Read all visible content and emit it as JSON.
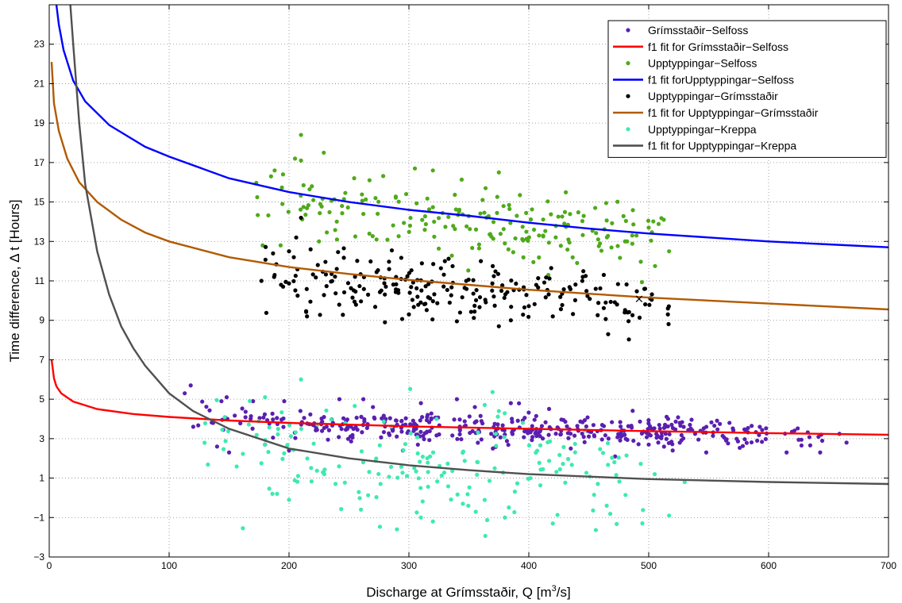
{
  "chart_data": {
    "type": "scatter",
    "xlabel": "Discharge at Grímsstaðir, Q [m",
    "xlabel_sup": "3",
    "xlabel_end": "/s]",
    "ylabel": "Time difference, Δ t [Hours]",
    "xlim": [
      0,
      700
    ],
    "ylim": [
      -3,
      25
    ],
    "xticks": [
      "0",
      "100",
      "200",
      "300",
      "400",
      "500",
      "600",
      "700"
    ],
    "yticks": [
      "−3",
      "−1",
      "1",
      "3",
      "5",
      "7",
      "9",
      "11",
      "13",
      "15",
      "17",
      "19",
      "21",
      "23"
    ],
    "grid": "dotted",
    "legend_position": "top-right",
    "series": [
      {
        "name": "Grímsstaðir−Selfoss",
        "kind": "scatter",
        "color": "#5a1fb0",
        "center": [
          [
            110,
            4.3
          ],
          [
            150,
            4.05
          ],
          [
            200,
            3.85
          ],
          [
            250,
            3.7
          ],
          [
            300,
            3.6
          ],
          [
            350,
            3.5
          ],
          [
            400,
            3.45
          ],
          [
            450,
            3.4
          ],
          [
            500,
            3.35
          ],
          [
            550,
            3.3
          ],
          [
            600,
            3.25
          ],
          [
            665,
            3.2
          ]
        ],
        "spread": 0.35,
        "x_range": [
          108,
          665
        ],
        "count": 420,
        "extra_points": [
          [
            118,
            5.7
          ],
          [
            113,
            5.3
          ],
          [
            148,
            5.1
          ],
          [
            242,
            5.0
          ],
          [
            262,
            5.0
          ],
          [
            170,
            4.9
          ],
          [
            196,
            4.9
          ],
          [
            340,
            5.0
          ],
          [
            355,
            4.6
          ],
          [
            385,
            4.8
          ],
          [
            140,
            2.6
          ],
          [
            150,
            2.3
          ],
          [
            200,
            2.4
          ],
          [
            295,
            2.4
          ],
          [
            370,
            2.5
          ],
          [
            435,
            2.5
          ],
          [
            472,
            2.1
          ],
          [
            520,
            2.4
          ],
          [
            548,
            2.3
          ],
          [
            615,
            2.3
          ],
          [
            643,
            2.3
          ],
          [
            665,
            2.8
          ],
          [
            310,
            4.8
          ],
          [
            270,
            4.6
          ],
          [
            180,
            2.7
          ],
          [
            500,
            2.7
          ]
        ]
      },
      {
        "name": "f1 fit for Grímsstaðir−Selfoss",
        "kind": "line",
        "color": "#ff0000",
        "curve": [
          [
            2,
            7.0
          ],
          [
            4,
            6.05
          ],
          [
            6,
            5.65
          ],
          [
            10,
            5.3
          ],
          [
            20,
            4.88
          ],
          [
            40,
            4.5
          ],
          [
            70,
            4.25
          ],
          [
            100,
            4.1
          ],
          [
            150,
            3.92
          ],
          [
            200,
            3.8
          ],
          [
            300,
            3.62
          ],
          [
            400,
            3.5
          ],
          [
            500,
            3.38
          ],
          [
            600,
            3.28
          ],
          [
            700,
            3.2
          ]
        ]
      },
      {
        "name": "Upptyppingar−Selfoss",
        "kind": "scatter",
        "color": "#4faa1a",
        "center": [
          [
            168,
            15.2
          ],
          [
            250,
            14.5
          ],
          [
            350,
            14.0
          ],
          [
            450,
            13.8
          ],
          [
            515,
            13.5
          ]
        ],
        "spread": 0.9,
        "x_range": [
          165,
          518
        ],
        "count": 190,
        "extra_points": [
          [
            210,
            18.4
          ],
          [
            205,
            17.2
          ],
          [
            210,
            17.1
          ],
          [
            229,
            17.5
          ],
          [
            188,
            16.6
          ],
          [
            195,
            16.4
          ],
          [
            185,
            16.3
          ],
          [
            305,
            16.7
          ],
          [
            320,
            16.6
          ],
          [
            375,
            16.5
          ],
          [
            193,
            12.8
          ],
          [
            225,
            13.0
          ],
          [
            240,
            13.1
          ],
          [
            273,
            13.1
          ],
          [
            380,
            12.9
          ],
          [
            383,
            12.6
          ],
          [
            433,
            13.1
          ],
          [
            482,
            13.0
          ],
          [
            517,
            12.5
          ],
          [
            500,
            13.7
          ],
          [
            178,
            12.8
          ]
        ]
      },
      {
        "name": "f1 fit forUpptyppingar−Selfoss",
        "kind": "line",
        "color": "#0000ff",
        "curve": [
          [
            3,
            26.5
          ],
          [
            5,
            25.5
          ],
          [
            8,
            24.0
          ],
          [
            12,
            22.7
          ],
          [
            20,
            21.15
          ],
          [
            30,
            20.1
          ],
          [
            50,
            18.9
          ],
          [
            80,
            17.8
          ],
          [
            100,
            17.3
          ],
          [
            150,
            16.2
          ],
          [
            200,
            15.5
          ],
          [
            250,
            15.0
          ],
          [
            300,
            14.6
          ],
          [
            350,
            14.3
          ],
          [
            400,
            13.95
          ],
          [
            450,
            13.65
          ],
          [
            500,
            13.4
          ],
          [
            550,
            13.2
          ],
          [
            600,
            13.0
          ],
          [
            650,
            12.85
          ],
          [
            700,
            12.7
          ]
        ]
      },
      {
        "name": "Upptyppingar−Grímsstaðir",
        "kind": "scatter",
        "color": "#000000",
        "center": [
          [
            168,
            11.3
          ],
          [
            250,
            10.8
          ],
          [
            350,
            10.4
          ],
          [
            450,
            10.2
          ],
          [
            515,
            9.7
          ]
        ],
        "spread": 0.8,
        "x_range": [
          165,
          518
        ],
        "count": 220,
        "extra_points": [
          [
            210,
            14.2
          ],
          [
            206,
            13.2
          ],
          [
            218,
            12.6
          ],
          [
            204,
            12.2
          ],
          [
            177,
            11.0
          ],
          [
            188,
            11.3
          ],
          [
            200,
            12.5
          ],
          [
            280,
            8.9
          ],
          [
            300,
            9.3
          ],
          [
            340,
            8.95
          ],
          [
            375,
            8.7
          ],
          [
            385,
            9.0
          ],
          [
            420,
            9.2
          ],
          [
            480,
            9.4
          ],
          [
            516,
            9.3
          ],
          [
            497,
            10.6
          ],
          [
            445,
            11.2
          ],
          [
            360,
            12.0
          ],
          [
            330,
            12.0
          ],
          [
            215,
            9.2
          ]
        ]
      },
      {
        "name": "f1 fit for Upptyppingar−Grímsstaðir",
        "kind": "line",
        "color": "#b25a00",
        "curve": [
          [
            2,
            22.1
          ],
          [
            4,
            20.0
          ],
          [
            8,
            18.6
          ],
          [
            15,
            17.2
          ],
          [
            25,
            16.0
          ],
          [
            40,
            15.0
          ],
          [
            60,
            14.1
          ],
          [
            80,
            13.45
          ],
          [
            100,
            13.0
          ],
          [
            150,
            12.2
          ],
          [
            200,
            11.7
          ],
          [
            250,
            11.35
          ],
          [
            300,
            11.05
          ],
          [
            350,
            10.8
          ],
          [
            400,
            10.55
          ],
          [
            450,
            10.35
          ],
          [
            500,
            10.15
          ],
          [
            600,
            9.85
          ],
          [
            700,
            9.55
          ]
        ]
      },
      {
        "name": "Upptyppingar−Kreppa",
        "kind": "scatter",
        "color": "#3deab0",
        "center": [
          [
            120,
            3.8
          ],
          [
            180,
            2.6
          ],
          [
            250,
            1.8
          ],
          [
            320,
            1.4
          ],
          [
            400,
            1.5
          ],
          [
            500,
            1.2
          ]
        ],
        "spread": 1.2,
        "x_range": [
          118,
          518
        ],
        "count": 180,
        "extra_points": [
          [
            210,
            6.0
          ],
          [
            180,
            5.1
          ],
          [
            375,
            4.4
          ],
          [
            323,
            4.0
          ],
          [
            395,
            3.8
          ],
          [
            290,
            -1.6
          ],
          [
            310,
            -1.0
          ],
          [
            320,
            -1.2
          ],
          [
            260,
            -0.6
          ],
          [
            380,
            -1.0
          ],
          [
            420,
            -1.3
          ],
          [
            517,
            -0.9
          ],
          [
            505,
            1.2
          ],
          [
            530,
            0.8
          ],
          [
            200,
            -0.1
          ],
          [
            190,
            0.2
          ],
          [
            465,
            -0.4
          ],
          [
            345,
            -0.3
          ]
        ]
      },
      {
        "name": "f1 fit for Upptyppingar−Kreppa",
        "kind": "line",
        "color": "#505050",
        "curve": [
          [
            17,
            25.5
          ],
          [
            20,
            23.0
          ],
          [
            25,
            19.0
          ],
          [
            30,
            15.9
          ],
          [
            40,
            12.5
          ],
          [
            50,
            10.3
          ],
          [
            60,
            8.7
          ],
          [
            70,
            7.6
          ],
          [
            80,
            6.7
          ],
          [
            100,
            5.3
          ],
          [
            120,
            4.4
          ],
          [
            150,
            3.5
          ],
          [
            200,
            2.5
          ],
          [
            250,
            2.0
          ],
          [
            300,
            1.65
          ],
          [
            350,
            1.4
          ],
          [
            400,
            1.2
          ],
          [
            500,
            0.95
          ],
          [
            600,
            0.8
          ],
          [
            700,
            0.7
          ]
        ]
      }
    ],
    "marker": {
      "x": 492,
      "y": 10.1,
      "symbol": "×",
      "color": "#000000"
    }
  }
}
